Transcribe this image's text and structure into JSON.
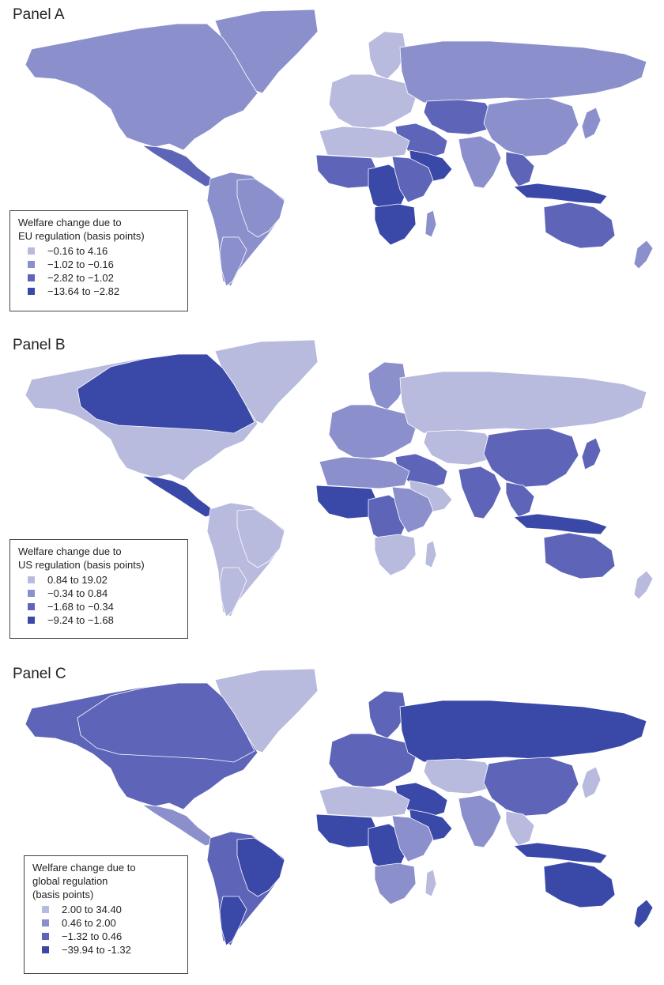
{
  "colors": {
    "class1": "#b8bade",
    "class2": "#8b90cc",
    "class3": "#5e64b8",
    "class4": "#3a48a8",
    "border": "#ffffff",
    "ocean": "#ffffff"
  },
  "panels": [
    {
      "title": "Panel A",
      "legend": {
        "title": "Welfare change due to\nEU regulation (basis points)",
        "items": [
          {
            "label": "−0.16 to 4.16",
            "class": "class1"
          },
          {
            "label": "−1.02 to −0.16",
            "class": "class2"
          },
          {
            "label": "−2.82 to −1.02",
            "class": "class3"
          },
          {
            "label": "−13.64 to −2.82",
            "class": "class4"
          }
        ]
      },
      "regions": {
        "north_america": "class2",
        "greenland": "class2",
        "central_america": "class3",
        "south_america": "class2",
        "brazil": "class2",
        "argentina": "class2",
        "europe": "class1",
        "scandinavia": "class1",
        "russia": "class2",
        "middle_east": "class3",
        "arabia": "class4",
        "north_africa": "class1",
        "west_africa": "class3",
        "central_africa": "class4",
        "east_africa": "class3",
        "southern_africa": "class4",
        "madagascar": "class2",
        "central_asia": "class3",
        "china": "class2",
        "india": "class2",
        "southeast_asia": "class3",
        "indonesia": "class4",
        "japan": "class2",
        "australia": "class3",
        "new_zealand": "class2"
      }
    },
    {
      "title": "Panel B",
      "legend": {
        "title": "Welfare change due to\nUS regulation (basis points)",
        "items": [
          {
            "label": "0.84 to 19.02",
            "class": "class1"
          },
          {
            "label": "−0.34 to 0.84",
            "class": "class2"
          },
          {
            "label": "−1.68 to −0.34",
            "class": "class3"
          },
          {
            "label": "−9.24 to −1.68",
            "class": "class4"
          }
        ]
      },
      "regions": {
        "north_america": "class1",
        "canada": "class4",
        "greenland": "class1",
        "central_america": "class4",
        "south_america": "class1",
        "brazil": "class1",
        "argentina": "class1",
        "europe": "class2",
        "scandinavia": "class2",
        "russia": "class1",
        "middle_east": "class3",
        "arabia": "class1",
        "north_africa": "class2",
        "west_africa": "class4",
        "central_africa": "class3",
        "east_africa": "class2",
        "southern_africa": "class1",
        "madagascar": "class1",
        "central_asia": "class1",
        "china": "class3",
        "india": "class3",
        "southeast_asia": "class3",
        "indonesia": "class4",
        "japan": "class3",
        "australia": "class3",
        "new_zealand": "class1"
      }
    },
    {
      "title": "Panel C",
      "legend": {
        "title": "Welfare change due to\nglobal regulation\n(basis points)",
        "items": [
          {
            "label": "2.00 to 34.40",
            "class": "class1"
          },
          {
            "label": "0.46 to 2.00",
            "class": "class2"
          },
          {
            "label": "−1.32 to 0.46",
            "class": "class3"
          },
          {
            "label": "−39.94 to -1.32",
            "class": "class4"
          }
        ]
      },
      "regions": {
        "north_america": "class3",
        "canada": "class3",
        "greenland": "class1",
        "central_america": "class2",
        "south_america": "class3",
        "brazil": "class4",
        "argentina": "class4",
        "europe": "class3",
        "scandinavia": "class3",
        "russia": "class4",
        "middle_east": "class4",
        "arabia": "class4",
        "north_africa": "class1",
        "west_africa": "class4",
        "central_africa": "class4",
        "east_africa": "class2",
        "southern_africa": "class2",
        "madagascar": "class1",
        "central_asia": "class1",
        "china": "class3",
        "india": "class2",
        "southeast_asia": "class1",
        "indonesia": "class4",
        "japan": "class1",
        "australia": "class4",
        "new_zealand": "class4"
      }
    }
  ]
}
